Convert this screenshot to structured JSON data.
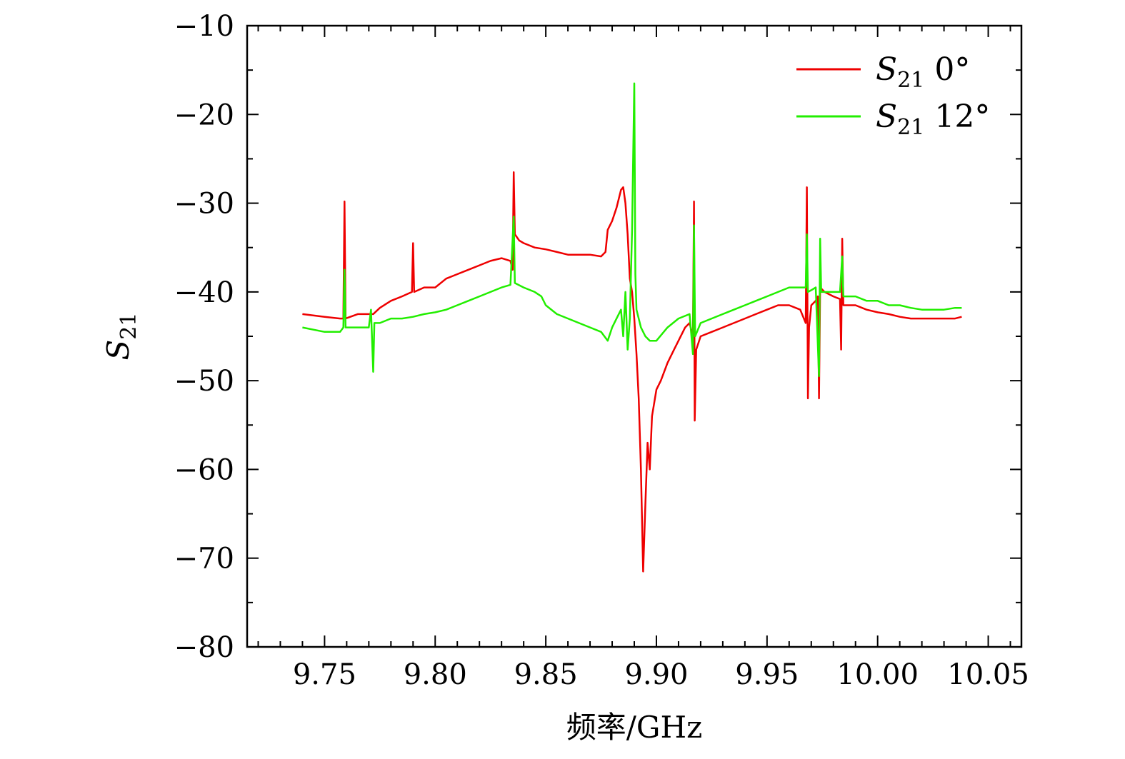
{
  "chart_data": {
    "type": "line",
    "xlabel": "频率/GHz",
    "ylabel": {
      "symbol": "S",
      "subscript": "21"
    },
    "xlim": [
      9.715,
      10.065
    ],
    "ylim": [
      -80,
      -10
    ],
    "xticks": [
      9.75,
      9.8,
      9.85,
      9.9,
      9.95,
      10.0,
      10.05
    ],
    "xtick_labels": [
      "9.75",
      "9.80",
      "9.85",
      "9.90",
      "9.95",
      "10.00",
      "10.05"
    ],
    "yticks": [
      -10,
      -20,
      -30,
      -40,
      -50,
      -60,
      -70,
      -80
    ],
    "ytick_labels": [
      "−10",
      "−20",
      "−30",
      "−40",
      "−50",
      "−60",
      "−70",
      "−80"
    ],
    "legend_position": "top-right",
    "grid": false,
    "series": [
      {
        "name": "S21 0°",
        "legend": {
          "symbol": "S",
          "subscript": "21",
          "suffix": " 0°"
        },
        "color": "#ee0000",
        "points": [
          [
            9.74,
            -42.5
          ],
          [
            9.75,
            -42.8
          ],
          [
            9.757,
            -43.0
          ],
          [
            9.7585,
            -43.0
          ],
          [
            9.759,
            -29.8
          ],
          [
            9.7595,
            -43.0
          ],
          [
            9.765,
            -42.5
          ],
          [
            9.772,
            -42.5
          ],
          [
            9.775,
            -41.8
          ],
          [
            9.78,
            -41.0
          ],
          [
            9.785,
            -40.5
          ],
          [
            9.7895,
            -40.0
          ],
          [
            9.79,
            -34.5
          ],
          [
            9.7905,
            -40.0
          ],
          [
            9.795,
            -39.5
          ],
          [
            9.8,
            -39.5
          ],
          [
            9.805,
            -38.5
          ],
          [
            9.81,
            -38.0
          ],
          [
            9.815,
            -37.5
          ],
          [
            9.82,
            -37.0
          ],
          [
            9.825,
            -36.5
          ],
          [
            9.83,
            -36.2
          ],
          [
            9.834,
            -36.5
          ],
          [
            9.835,
            -37.5
          ],
          [
            9.8355,
            -26.5
          ],
          [
            9.836,
            -33.5
          ],
          [
            9.838,
            -34.2
          ],
          [
            9.84,
            -34.5
          ],
          [
            9.845,
            -35.0
          ],
          [
            9.85,
            -35.2
          ],
          [
            9.855,
            -35.5
          ],
          [
            9.86,
            -35.8
          ],
          [
            9.865,
            -35.8
          ],
          [
            9.87,
            -35.8
          ],
          [
            9.875,
            -36.0
          ],
          [
            9.877,
            -35.5
          ],
          [
            9.878,
            -33.0
          ],
          [
            9.88,
            -32.0
          ],
          [
            9.882,
            -30.5
          ],
          [
            9.884,
            -28.5
          ],
          [
            9.885,
            -28.2
          ],
          [
            9.886,
            -30.0
          ],
          [
            9.887,
            -33.5
          ],
          [
            9.888,
            -38.5
          ],
          [
            9.889,
            -40.0
          ],
          [
            9.89,
            -43.0
          ],
          [
            9.891,
            -47.0
          ],
          [
            9.892,
            -52.0
          ],
          [
            9.893,
            -60.0
          ],
          [
            9.894,
            -71.5
          ],
          [
            9.895,
            -64.0
          ],
          [
            9.896,
            -57.0
          ],
          [
            9.897,
            -60.0
          ],
          [
            9.898,
            -54.0
          ],
          [
            9.9,
            -51.0
          ],
          [
            9.902,
            -50.0
          ],
          [
            9.905,
            -48.0
          ],
          [
            9.908,
            -46.5
          ],
          [
            9.91,
            -45.5
          ],
          [
            9.913,
            -44.0
          ],
          [
            9.915,
            -43.5
          ],
          [
            9.9165,
            -45.0
          ],
          [
            9.917,
            -29.8
          ],
          [
            9.9173,
            -54.5
          ],
          [
            9.918,
            -46.5
          ],
          [
            9.92,
            -45.0
          ],
          [
            9.925,
            -44.5
          ],
          [
            9.93,
            -44.0
          ],
          [
            9.935,
            -43.5
          ],
          [
            9.94,
            -43.0
          ],
          [
            9.945,
            -42.5
          ],
          [
            9.95,
            -42.0
          ],
          [
            9.955,
            -41.5
          ],
          [
            9.96,
            -41.5
          ],
          [
            9.965,
            -42.0
          ],
          [
            9.9675,
            -43.5
          ],
          [
            9.968,
            -28.2
          ],
          [
            9.9685,
            -52.0
          ],
          [
            9.969,
            -44.0
          ],
          [
            9.97,
            -41.5
          ],
          [
            9.972,
            -41.0
          ],
          [
            9.973,
            -40.5
          ],
          [
            9.9735,
            -52.0
          ],
          [
            9.974,
            -39.5
          ],
          [
            9.976,
            -40.0
          ],
          [
            9.98,
            -40.5
          ],
          [
            9.983,
            -40.8
          ],
          [
            9.9835,
            -46.5
          ],
          [
            9.984,
            -34.0
          ],
          [
            9.9845,
            -41.5
          ],
          [
            9.987,
            -41.5
          ],
          [
            9.99,
            -41.5
          ],
          [
            9.995,
            -42.0
          ],
          [
            10.0,
            -42.3
          ],
          [
            10.005,
            -42.5
          ],
          [
            10.01,
            -42.8
          ],
          [
            10.015,
            -43.0
          ],
          [
            10.02,
            -43.0
          ],
          [
            10.025,
            -43.0
          ],
          [
            10.03,
            -43.0
          ],
          [
            10.035,
            -43.0
          ],
          [
            10.038,
            -42.8
          ]
        ]
      },
      {
        "name": "S21 12°",
        "legend": {
          "symbol": "S",
          "subscript": "21",
          "suffix": " 12°"
        },
        "color": "#22ee00",
        "points": [
          [
            9.74,
            -44.0
          ],
          [
            9.75,
            -44.5
          ],
          [
            9.757,
            -44.5
          ],
          [
            9.7585,
            -44.0
          ],
          [
            9.759,
            -37.5
          ],
          [
            9.7595,
            -44.0
          ],
          [
            9.765,
            -44.0
          ],
          [
            9.77,
            -44.0
          ],
          [
            9.771,
            -42.0
          ],
          [
            9.772,
            -49.0
          ],
          [
            9.7725,
            -43.5
          ],
          [
            9.775,
            -43.5
          ],
          [
            9.78,
            -43.0
          ],
          [
            9.785,
            -43.0
          ],
          [
            9.79,
            -42.8
          ],
          [
            9.795,
            -42.5
          ],
          [
            9.8,
            -42.3
          ],
          [
            9.805,
            -42.0
          ],
          [
            9.81,
            -41.5
          ],
          [
            9.815,
            -41.0
          ],
          [
            9.82,
            -40.5
          ],
          [
            9.825,
            -40.0
          ],
          [
            9.83,
            -39.5
          ],
          [
            9.834,
            -39.2
          ],
          [
            9.8355,
            -31.5
          ],
          [
            9.836,
            -39.0
          ],
          [
            9.84,
            -39.5
          ],
          [
            9.845,
            -40.0
          ],
          [
            9.848,
            -40.5
          ],
          [
            9.85,
            -41.5
          ],
          [
            9.855,
            -42.5
          ],
          [
            9.86,
            -43.0
          ],
          [
            9.865,
            -43.5
          ],
          [
            9.87,
            -44.0
          ],
          [
            9.875,
            -44.5
          ],
          [
            9.878,
            -45.5
          ],
          [
            9.88,
            -44.0
          ],
          [
            9.882,
            -43.0
          ],
          [
            9.884,
            -42.0
          ],
          [
            9.885,
            -45.0
          ],
          [
            9.886,
            -40.0
          ],
          [
            9.887,
            -46.5
          ],
          [
            9.888,
            -43.0
          ],
          [
            9.889,
            -33.0
          ],
          [
            9.89,
            -16.5
          ],
          [
            9.8905,
            -38.0
          ],
          [
            9.891,
            -42.0
          ],
          [
            9.893,
            -44.0
          ],
          [
            9.895,
            -45.0
          ],
          [
            9.897,
            -45.5
          ],
          [
            9.9,
            -45.5
          ],
          [
            9.905,
            -44.0
          ],
          [
            9.91,
            -43.0
          ],
          [
            9.915,
            -42.5
          ],
          [
            9.9165,
            -47.0
          ],
          [
            9.917,
            -32.5
          ],
          [
            9.9175,
            -45.0
          ],
          [
            9.92,
            -43.5
          ],
          [
            9.925,
            -43.0
          ],
          [
            9.93,
            -42.5
          ],
          [
            9.935,
            -42.0
          ],
          [
            9.94,
            -41.5
          ],
          [
            9.945,
            -41.0
          ],
          [
            9.95,
            -40.5
          ],
          [
            9.955,
            -40.0
          ],
          [
            9.96,
            -39.5
          ],
          [
            9.965,
            -39.5
          ],
          [
            9.9675,
            -39.5
          ],
          [
            9.968,
            -33.5
          ],
          [
            9.9685,
            -40.0
          ],
          [
            9.97,
            -39.8
          ],
          [
            9.972,
            -39.5
          ],
          [
            9.9735,
            -49.5
          ],
          [
            9.974,
            -34.0
          ],
          [
            9.9745,
            -40.0
          ],
          [
            9.978,
            -40.0
          ],
          [
            9.983,
            -40.0
          ],
          [
            9.984,
            -36.0
          ],
          [
            9.9845,
            -40.5
          ],
          [
            9.99,
            -40.5
          ],
          [
            9.995,
            -41.0
          ],
          [
            10.0,
            -41.0
          ],
          [
            10.005,
            -41.5
          ],
          [
            10.01,
            -41.5
          ],
          [
            10.015,
            -41.8
          ],
          [
            10.02,
            -42.0
          ],
          [
            10.025,
            -42.0
          ],
          [
            10.03,
            -42.0
          ],
          [
            10.035,
            -41.8
          ],
          [
            10.038,
            -41.8
          ]
        ]
      }
    ]
  }
}
